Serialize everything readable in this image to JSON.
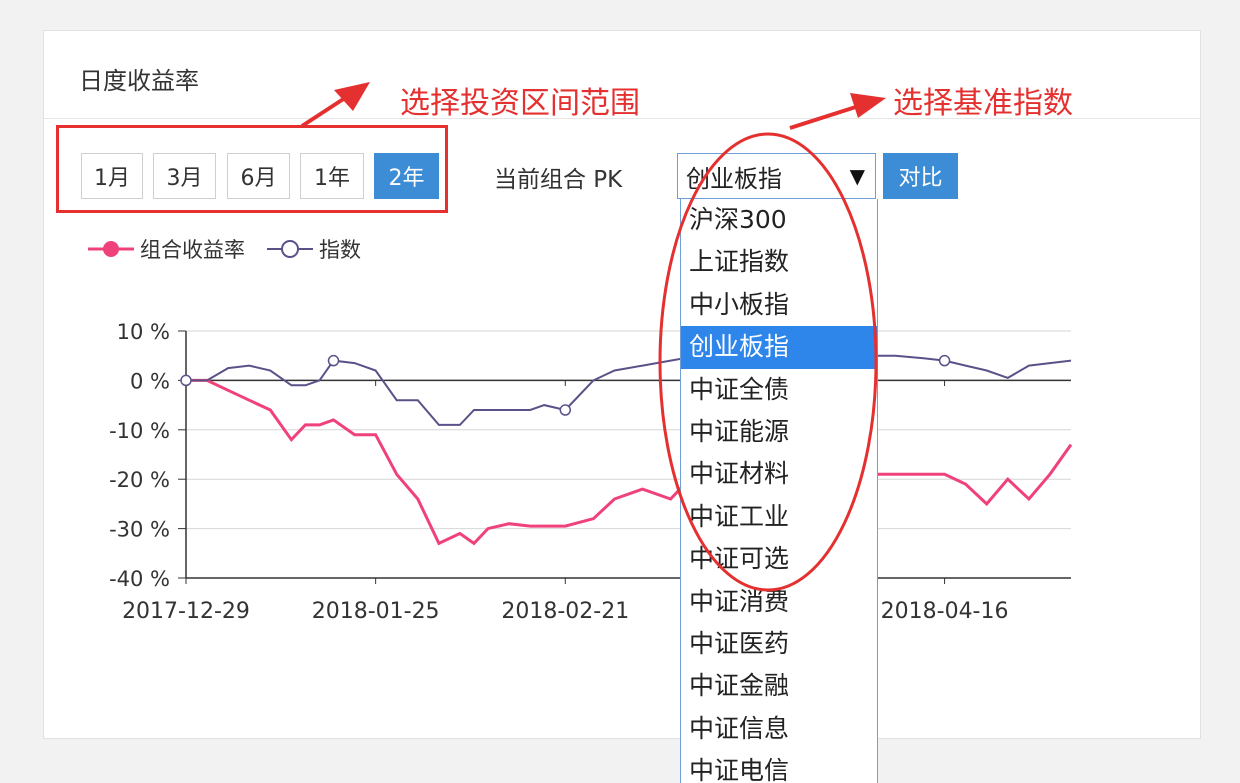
{
  "panel": {
    "title": "日度收益率"
  },
  "ranges": [
    {
      "label": "1月",
      "active": false
    },
    {
      "label": "3月",
      "active": false
    },
    {
      "label": "6月",
      "active": false
    },
    {
      "label": "1年",
      "active": false
    },
    {
      "label": "2年",
      "active": true
    }
  ],
  "compare": {
    "label": "当前组合 PK",
    "selected": "创业板指",
    "button": "对比",
    "options": [
      "沪深300",
      "上证指数",
      "中小板指",
      "创业板指",
      "中证全债",
      "中证能源",
      "中证材料",
      "中证工业",
      "中证可选",
      "中证消费",
      "中证医药",
      "中证金融",
      "中证信息",
      "中证电信"
    ]
  },
  "legend": {
    "portfolio": "组合收益率",
    "index": "指数"
  },
  "colors": {
    "accent": "#3c8dd6",
    "portfolio": "#f0427a",
    "index": "#5b5189",
    "annotation": "#e53030"
  },
  "annotations": {
    "range": "选择投资区间范围",
    "benchmark": "选择基准指数"
  },
  "chart_data": {
    "type": "line",
    "x_ticks": [
      "2017-12-29",
      "2018-01-25",
      "2018-02-21",
      "2018-04-16"
    ],
    "y_ticks": [
      "10 %",
      "0 %",
      "-10 %",
      "-20 %",
      "-30 %",
      "-40 %"
    ],
    "ylim": [
      -40,
      10
    ],
    "x": [
      "2017-12-29",
      "2018-01-01",
      "2018-01-04",
      "2018-01-07",
      "2018-01-10",
      "2018-01-13",
      "2018-01-15",
      "2018-01-17",
      "2018-01-19",
      "2018-01-22",
      "2018-01-25",
      "2018-01-28",
      "2018-01-31",
      "2018-02-03",
      "2018-02-06",
      "2018-02-08",
      "2018-02-10",
      "2018-02-13",
      "2018-02-16",
      "2018-02-18",
      "2018-02-21",
      "2018-02-25",
      "2018-02-28",
      "2018-03-04",
      "2018-03-08",
      "2018-03-12",
      "2018-03-16",
      "2018-03-20",
      "2018-03-24",
      "2018-03-28",
      "2018-04-01",
      "2018-04-05",
      "2018-04-09",
      "2018-04-13",
      "2018-04-16",
      "2018-04-19",
      "2018-04-22",
      "2018-04-25",
      "2018-04-28",
      "2018-05-01",
      "2018-05-04"
    ],
    "series": [
      {
        "name": "组合收益率",
        "values": [
          0,
          0,
          -2,
          -4,
          -6,
          -12,
          -9,
          -9,
          -8,
          -11,
          -11,
          -19,
          -24,
          -33,
          -31,
          -33,
          -30,
          -29,
          -29.5,
          -29.5,
          -29.5,
          -28,
          -24,
          -22,
          -24,
          -18,
          -18,
          -18,
          -18,
          -19,
          -20,
          -19,
          -19,
          -19,
          -19,
          -21,
          -25,
          -20,
          -24,
          -19,
          -13
        ]
      },
      {
        "name": "指数",
        "values": [
          0,
          0,
          2.5,
          3,
          2,
          -1,
          -1,
          0,
          4,
          3.5,
          2,
          -4,
          -4,
          -9,
          -9,
          -6,
          -6,
          -6,
          -6,
          -5,
          -6,
          0,
          2,
          3,
          4,
          5,
          5,
          5,
          4,
          5,
          5,
          5,
          5,
          4.5,
          4,
          3,
          2,
          0.5,
          3,
          3.5,
          4
        ]
      }
    ]
  }
}
